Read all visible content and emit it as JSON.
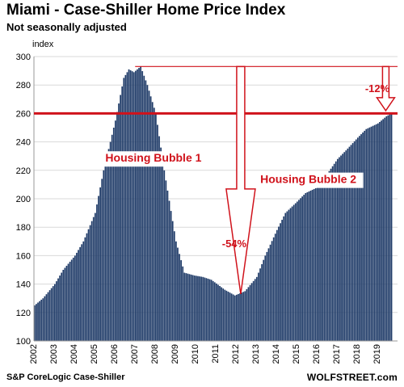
{
  "title": "Miami - Case-Shiller Home Price Index",
  "subtitle": "Not seasonally adjusted",
  "source": "S&P CoreLogic Case-Shiller",
  "brand": "WOLFSTREET.com",
  "chart_data": {
    "type": "bar",
    "ylabel": "index",
    "ylim": [
      100,
      300
    ],
    "yticks": [
      100,
      120,
      140,
      160,
      180,
      200,
      220,
      240,
      260,
      280,
      300
    ],
    "xticks": [
      "2002",
      "2003",
      "2004",
      "2005",
      "2006",
      "2007",
      "2008",
      "2009",
      "2010",
      "2011",
      "2012",
      "2013",
      "2014",
      "2015",
      "2016",
      "2017",
      "2018",
      "2019"
    ],
    "x_start": "2002-01",
    "frequency": "monthly",
    "bar_color": "#1f3b68",
    "accent_color": "#d0121b",
    "grid": true,
    "keypoints": [
      [
        "2002-01",
        125
      ],
      [
        "2002-06",
        130
      ],
      [
        "2003-01",
        140
      ],
      [
        "2003-06",
        150
      ],
      [
        "2004-01",
        160
      ],
      [
        "2004-06",
        170
      ],
      [
        "2005-01",
        190
      ],
      [
        "2005-06",
        220
      ],
      [
        "2006-01",
        255
      ],
      [
        "2006-06",
        285
      ],
      [
        "2006-09",
        291
      ],
      [
        "2006-12",
        289
      ],
      [
        "2007-04",
        293
      ],
      [
        "2007-08",
        280
      ],
      [
        "2008-01",
        260
      ],
      [
        "2008-06",
        220
      ],
      [
        "2009-01",
        170
      ],
      [
        "2009-06",
        148
      ],
      [
        "2009-12",
        146
      ],
      [
        "2010-05",
        145
      ],
      [
        "2010-10",
        143
      ],
      [
        "2011-06",
        136
      ],
      [
        "2011-12",
        132
      ],
      [
        "2012-06",
        135
      ],
      [
        "2013-01",
        145
      ],
      [
        "2013-06",
        160
      ],
      [
        "2014-01",
        178
      ],
      [
        "2014-06",
        190
      ],
      [
        "2015-01",
        198
      ],
      [
        "2015-06",
        204
      ],
      [
        "2016-01",
        208
      ],
      [
        "2016-06",
        216
      ],
      [
        "2017-01",
        228
      ],
      [
        "2017-06",
        234
      ],
      [
        "2018-01",
        243
      ],
      [
        "2018-06",
        249
      ],
      [
        "2019-01",
        253
      ],
      [
        "2019-06",
        258
      ],
      [
        "2019-09",
        260
      ]
    ],
    "reference_lines": [
      {
        "value": 260,
        "color": "#d0121b"
      },
      {
        "value": 293,
        "color": "#d0121b"
      }
    ],
    "annotations": [
      {
        "text": "Housing Bubble 1",
        "at": [
          "2007-12",
          226
        ]
      },
      {
        "text": "Housing Bubble 2",
        "at": [
          "2015-08",
          211
        ]
      },
      {
        "text": "-54%",
        "at": [
          "2011-12",
          166
        ]
      },
      {
        "text": "-12%",
        "at": [
          "2019-01",
          275
        ]
      }
    ]
  }
}
